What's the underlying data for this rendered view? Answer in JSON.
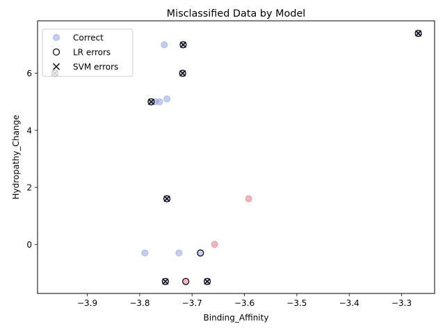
{
  "chart_data": {
    "type": "scatter",
    "title": "Misclassified Data by Model",
    "xlabel": "Binding_Affinity",
    "ylabel": "Hydropathy_Change",
    "xlim": [
      -3.995,
      -3.237
    ],
    "ylim": [
      -1.72,
      7.84
    ],
    "xticks": [
      -3.9,
      -3.8,
      -3.7,
      -3.6,
      -3.5,
      -3.4,
      -3.3
    ],
    "xtick_labels": [
      "−3.9",
      "−3.8",
      "−3.7",
      "−3.6",
      "−3.5",
      "−3.4",
      "−3.3"
    ],
    "yticks": [
      0,
      2,
      4,
      6
    ],
    "ytick_labels": [
      "0",
      "2",
      "4",
      "6"
    ],
    "grid": false,
    "legend_position": "upper-left",
    "colors": {
      "class_a": "#8c9ee0",
      "class_b": "#dd6f85",
      "marker_edge": "#000000"
    },
    "legend": [
      {
        "label": "Correct",
        "marker": "filled-circle"
      },
      {
        "label": "LR errors",
        "marker": "hollow-circle"
      },
      {
        "label": "SVM errors",
        "marker": "x"
      }
    ],
    "points": [
      {
        "x": -3.962,
        "y": 6.0,
        "class": "a"
      },
      {
        "x": -3.753,
        "y": 7.0,
        "class": "a"
      },
      {
        "x": -3.717,
        "y": 7.0,
        "class": "a"
      },
      {
        "x": -3.268,
        "y": 7.4,
        "class": "a"
      },
      {
        "x": -3.718,
        "y": 6.0,
        "class": "a"
      },
      {
        "x": -3.748,
        "y": 5.1,
        "class": "a"
      },
      {
        "x": -3.778,
        "y": 5.0,
        "class": "a"
      },
      {
        "x": -3.77,
        "y": 5.0,
        "class": "a"
      },
      {
        "x": -3.762,
        "y": 5.0,
        "class": "a"
      },
      {
        "x": -3.748,
        "y": 1.6,
        "class": "a"
      },
      {
        "x": -3.592,
        "y": 1.6,
        "class": "b"
      },
      {
        "x": -3.79,
        "y": -0.3,
        "class": "a"
      },
      {
        "x": -3.725,
        "y": -0.3,
        "class": "a"
      },
      {
        "x": -3.684,
        "y": -0.3,
        "class": "a"
      },
      {
        "x": -3.657,
        "y": 0.0,
        "class": "b"
      },
      {
        "x": -3.751,
        "y": -1.3,
        "class": "a"
      },
      {
        "x": -3.712,
        "y": -1.3,
        "class": "b"
      },
      {
        "x": -3.671,
        "y": -1.3,
        "class": "a"
      }
    ],
    "lr_errors": [
      {
        "x": -3.962,
        "y": 6.0
      },
      {
        "x": -3.717,
        "y": 7.0
      },
      {
        "x": -3.268,
        "y": 7.4
      },
      {
        "x": -3.718,
        "y": 6.0
      },
      {
        "x": -3.778,
        "y": 5.0
      },
      {
        "x": -3.748,
        "y": 1.6
      },
      {
        "x": -3.684,
        "y": -0.3
      },
      {
        "x": -3.751,
        "y": -1.3
      },
      {
        "x": -3.712,
        "y": -1.3
      },
      {
        "x": -3.671,
        "y": -1.3
      }
    ],
    "svm_errors": [
      {
        "x": -3.962,
        "y": 6.0
      },
      {
        "x": -3.717,
        "y": 7.0
      },
      {
        "x": -3.268,
        "y": 7.4
      },
      {
        "x": -3.718,
        "y": 6.0
      },
      {
        "x": -3.778,
        "y": 5.0
      },
      {
        "x": -3.748,
        "y": 1.6
      },
      {
        "x": -3.751,
        "y": -1.3
      },
      {
        "x": -3.671,
        "y": -1.3
      }
    ]
  }
}
